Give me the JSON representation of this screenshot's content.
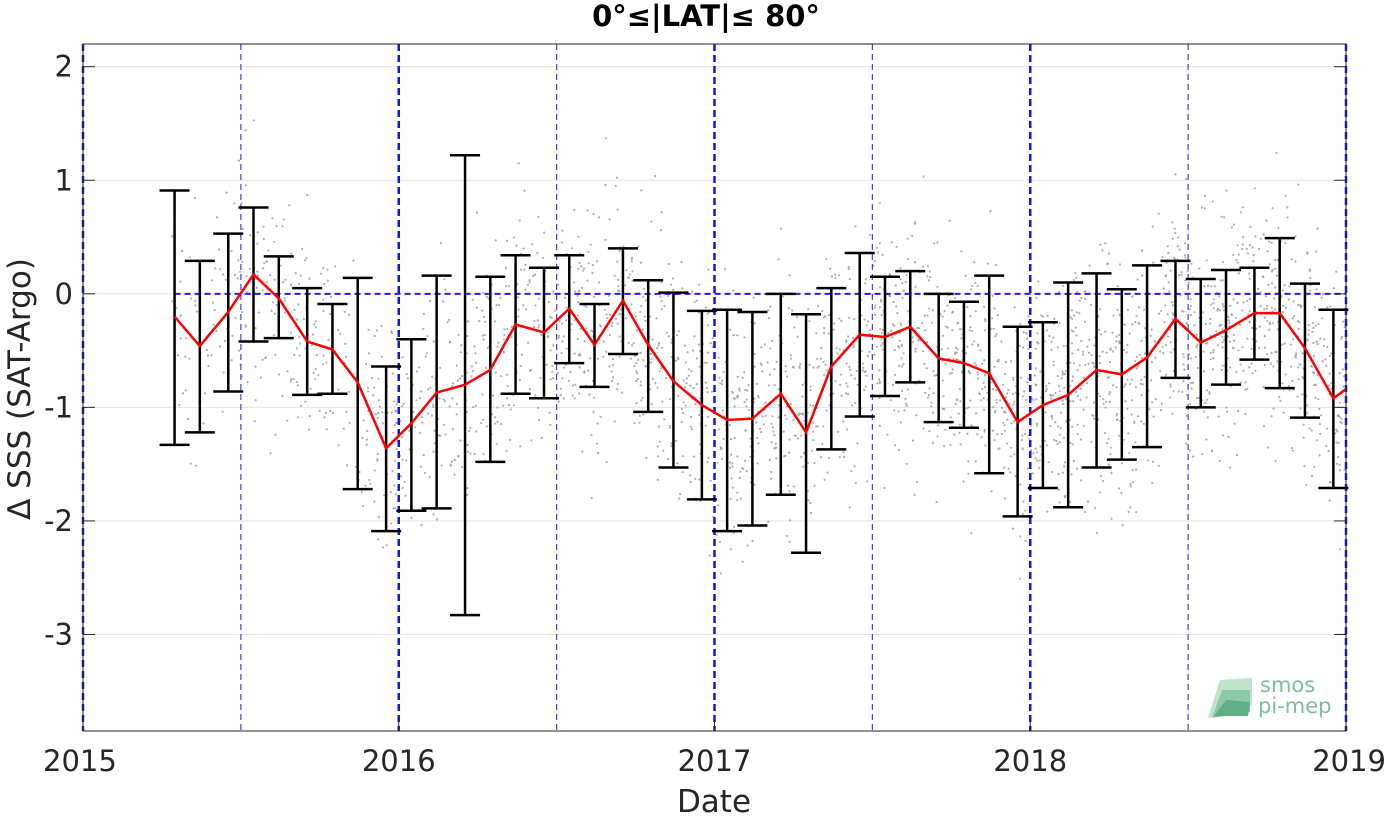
{
  "chart_data": {
    "type": "line",
    "title": "0°≤|LAT|≤ 80°",
    "xlabel": "Date",
    "ylabel": "Δ SSS (SAT-Argo)",
    "xlim": [
      2015.0,
      2019.0
    ],
    "ylim": [
      -3.85,
      2.2
    ],
    "xticks": [
      2015,
      2016,
      2017,
      2018,
      2019
    ],
    "xtick_labels": [
      "2015",
      "2016",
      "2017",
      "2018",
      "2019"
    ],
    "yticks": [
      -3,
      -2,
      -1,
      0,
      1,
      2
    ],
    "ytick_labels": [
      "-3",
      "-2",
      "-1",
      "0",
      "1",
      "2"
    ],
    "grid": true,
    "zero_line": 0,
    "year_lines": [
      2015.0,
      2016.0,
      2017.0,
      2018.0,
      2019.0
    ],
    "half_year_lines": [
      2015.5,
      2016.5,
      2017.5,
      2018.5
    ],
    "series": [
      {
        "role": "monthly-median",
        "color": "#ff0000",
        "x": [
          2015.29,
          2015.37,
          2015.46,
          2015.54,
          2015.62,
          2015.71,
          2015.79,
          2015.87,
          2015.96,
          2016.04,
          2016.12,
          2016.21,
          2016.29,
          2016.37,
          2016.46,
          2016.54,
          2016.62,
          2016.71,
          2016.79,
          2016.87,
          2016.96,
          2017.04,
          2017.12,
          2017.21,
          2017.29,
          2017.37,
          2017.46,
          2017.54,
          2017.62,
          2017.71,
          2017.79,
          2017.87,
          2017.96,
          2018.04,
          2018.12,
          2018.21,
          2018.29,
          2018.37,
          2018.46,
          2018.54,
          2018.62,
          2018.71,
          2018.79,
          2018.87,
          2018.96,
          2019.0
        ],
        "y": [
          -0.2,
          -0.46,
          -0.16,
          0.17,
          -0.04,
          -0.42,
          -0.49,
          -0.78,
          -1.36,
          -1.14,
          -0.87,
          -0.8,
          -0.67,
          -0.27,
          -0.34,
          -0.13,
          -0.45,
          -0.06,
          -0.45,
          -0.77,
          -0.98,
          -1.11,
          -1.1,
          -0.88,
          -1.22,
          -0.64,
          -0.36,
          -0.38,
          -0.29,
          -0.57,
          -0.61,
          -0.7,
          -1.13,
          -0.98,
          -0.89,
          -0.67,
          -0.71,
          -0.56,
          -0.22,
          -0.43,
          -0.32,
          -0.17,
          -0.17,
          -0.48,
          -0.92,
          -0.84
        ]
      },
      {
        "role": "error-bars",
        "color": "#000000",
        "x": [
          2015.29,
          2015.37,
          2015.46,
          2015.54,
          2015.62,
          2015.71,
          2015.79,
          2015.87,
          2015.96,
          2016.04,
          2016.12,
          2016.21,
          2016.29,
          2016.37,
          2016.46,
          2016.54,
          2016.62,
          2016.71,
          2016.79,
          2016.87,
          2016.96,
          2017.04,
          2017.12,
          2017.21,
          2017.29,
          2017.37,
          2017.46,
          2017.54,
          2017.62,
          2017.71,
          2017.79,
          2017.87,
          2017.96,
          2018.04,
          2018.12,
          2018.21,
          2018.29,
          2018.37,
          2018.46,
          2018.54,
          2018.62,
          2018.71,
          2018.79,
          2018.87,
          2018.96
        ],
        "low": [
          -1.33,
          -1.22,
          -0.86,
          -0.42,
          -0.39,
          -0.89,
          -0.88,
          -1.72,
          -2.09,
          -1.91,
          -1.89,
          -2.83,
          -1.48,
          -0.88,
          -0.92,
          -0.61,
          -0.82,
          -0.53,
          -1.04,
          -1.53,
          -1.81,
          -2.09,
          -2.04,
          -1.77,
          -2.28,
          -1.37,
          -1.08,
          -0.9,
          -0.78,
          -1.13,
          -1.18,
          -1.58,
          -1.96,
          -1.71,
          -1.88,
          -1.53,
          -1.46,
          -1.35,
          -0.74,
          -1.0,
          -0.8,
          -0.58,
          -0.83,
          -1.09,
          -1.71
        ],
        "high": [
          0.91,
          0.29,
          0.53,
          0.76,
          0.33,
          0.05,
          -0.09,
          0.14,
          -0.64,
          -0.4,
          0.16,
          1.22,
          0.15,
          0.34,
          0.23,
          0.34,
          -0.09,
          0.4,
          0.12,
          0.01,
          -0.15,
          -0.14,
          -0.16,
          0.0,
          -0.18,
          0.05,
          0.36,
          0.15,
          0.2,
          0.0,
          -0.07,
          0.16,
          -0.29,
          -0.25,
          0.1,
          0.18,
          0.04,
          0.25,
          0.29,
          0.13,
          0.21,
          0.23,
          0.49,
          0.09,
          -0.14
        ]
      }
    ],
    "scatter_note_color": "#a0a0a0"
  },
  "logo": {
    "line1": "smos",
    "line2": "pi-mep"
  }
}
